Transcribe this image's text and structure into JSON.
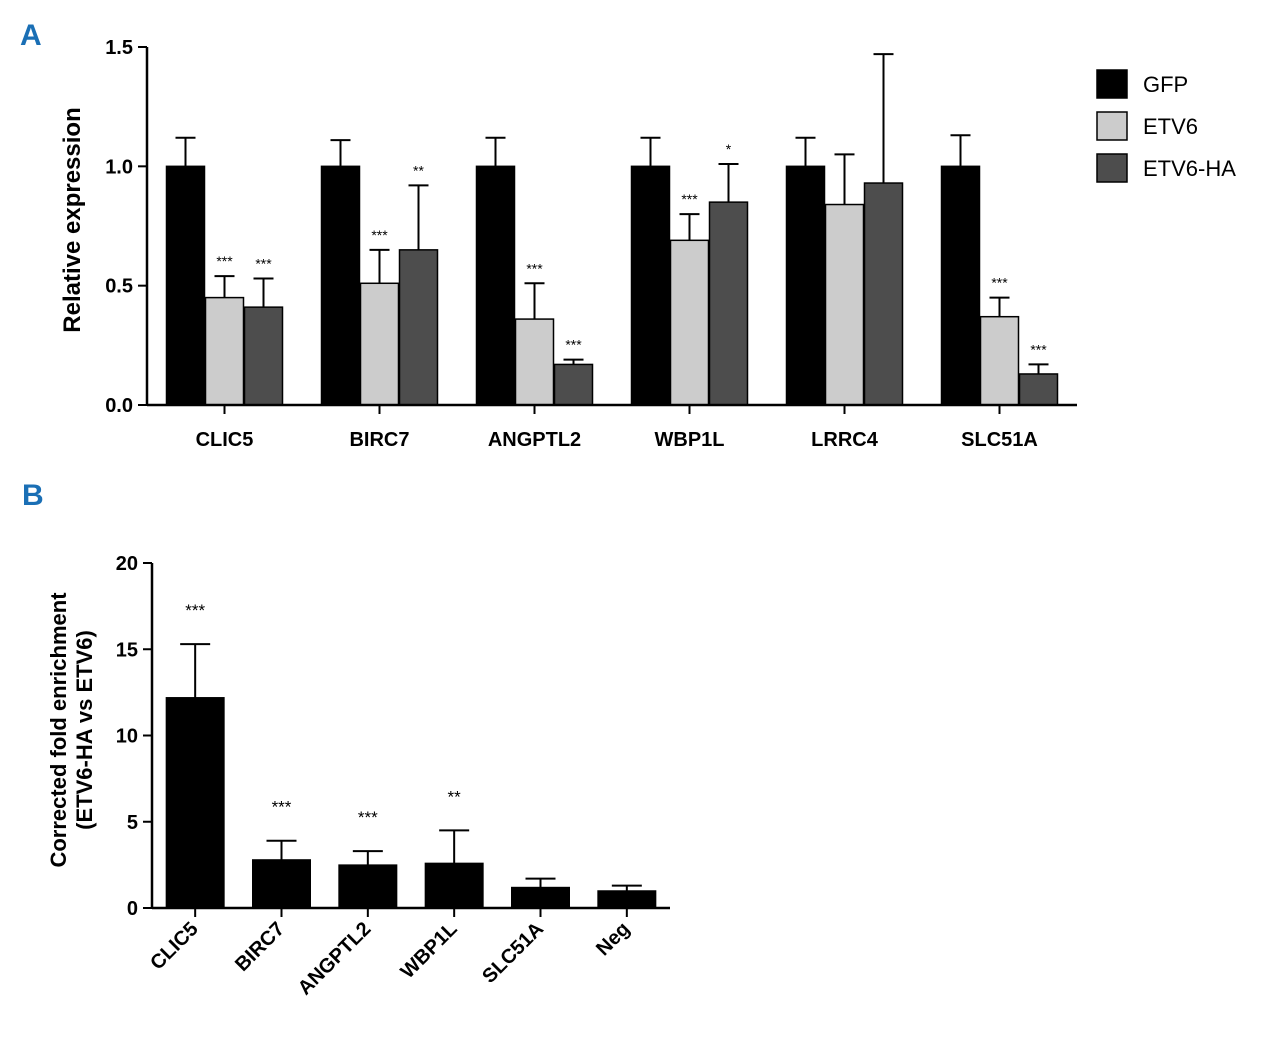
{
  "colors": {
    "GFP": "#000000",
    "ETV6": "#cccccc",
    "ETV6-HA": "#4d4d4d",
    "panel_letter": "#1a6fb5"
  },
  "chart_data": [
    {
      "panel": "A",
      "type": "bar",
      "ylabel": "Relative  expression",
      "xlabel": "",
      "ylim": [
        0,
        1.5
      ],
      "yticks": [
        "0.0",
        "0.5",
        "1.0",
        "1.5"
      ],
      "categories": [
        "CLIC5",
        "BIRC7",
        "ANGPTL2",
        "WBP1L",
        "LRRC4",
        "SLC51A"
      ],
      "legend_position": "top-right",
      "series": [
        {
          "name": "GFP",
          "values": [
            1.0,
            1.0,
            1.0,
            1.0,
            1.0,
            1.0
          ],
          "errors": [
            0.12,
            0.11,
            0.12,
            0.12,
            0.12,
            0.13
          ],
          "significance": [
            "",
            "",
            "",
            "",
            "",
            ""
          ]
        },
        {
          "name": "ETV6",
          "values": [
            0.45,
            0.51,
            0.36,
            0.69,
            0.84,
            0.37
          ],
          "errors": [
            0.09,
            0.14,
            0.15,
            0.11,
            0.21,
            0.08
          ],
          "significance": [
            "***",
            "***",
            "***",
            "***",
            "",
            "***"
          ]
        },
        {
          "name": "ETV6-HA",
          "values": [
            0.41,
            0.65,
            0.17,
            0.85,
            0.93,
            0.13
          ],
          "errors": [
            0.12,
            0.27,
            0.02,
            0.16,
            0.54,
            0.04
          ],
          "significance": [
            "***",
            "**",
            "***",
            "*",
            "",
            "***"
          ]
        }
      ]
    },
    {
      "panel": "B",
      "type": "bar",
      "ylabel": "Corrected fold enrichment",
      "ylabel_line2": "(ETV6-HA vs ETV6)",
      "xlabel": "",
      "ylim": [
        0,
        20
      ],
      "yticks": [
        "0",
        "5",
        "10",
        "15",
        "20"
      ],
      "categories": [
        "CLIC5",
        "BIRC7",
        "ANGPTL2",
        "WBP1L",
        "SLC51A",
        "Neg"
      ],
      "values": [
        12.2,
        2.8,
        2.5,
        2.6,
        1.2,
        1.0
      ],
      "errors": [
        3.1,
        1.1,
        0.8,
        1.9,
        0.5,
        0.3
      ],
      "significance": [
        "***",
        "***",
        "***",
        "**",
        "",
        ""
      ]
    }
  ]
}
